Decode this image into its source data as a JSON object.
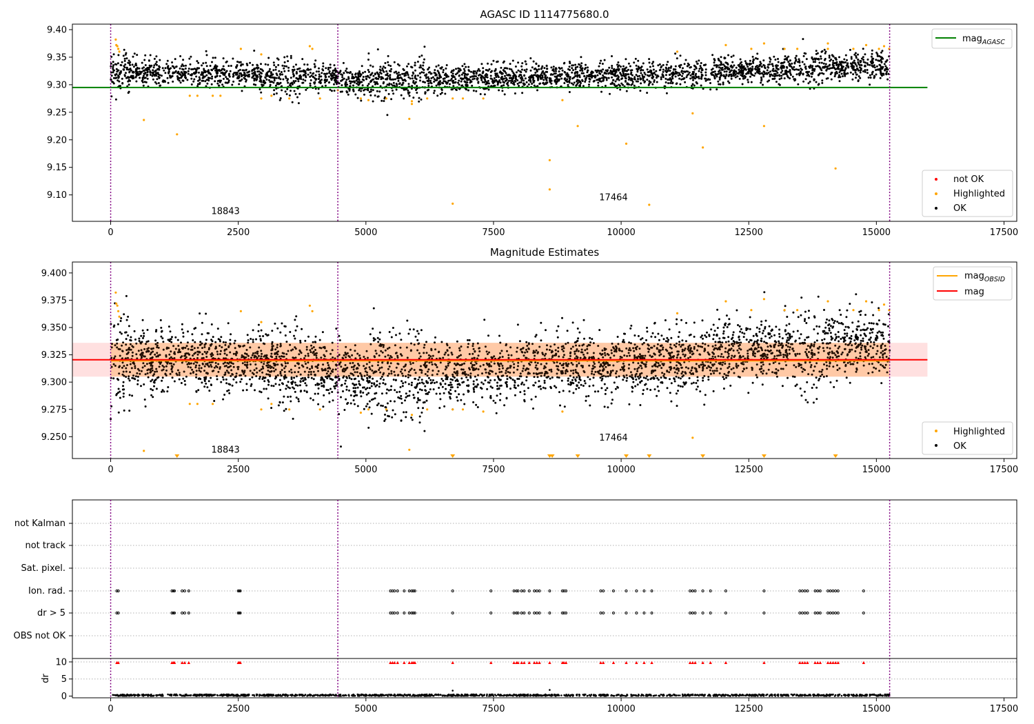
{
  "chart_data": [
    {
      "type": "scatter",
      "title": "AGASC ID 1114775680.0",
      "x_range": [
        -750,
        17750
      ],
      "y_range": [
        9.052,
        9.41
      ],
      "x_ticks": [
        0,
        2500,
        5000,
        7500,
        10000,
        12500,
        15000,
        17500
      ],
      "x_tick_labels": [
        "0",
        "2500",
        "5000",
        "7500",
        "10000",
        "12500",
        "15000",
        "17500"
      ],
      "y_ticks": [
        9.1,
        9.15,
        9.2,
        9.25,
        9.3,
        9.35,
        9.4
      ],
      "y_tick_labels": [
        "9.10",
        "9.15",
        "9.20",
        "9.25",
        "9.30",
        "9.35",
        "9.40"
      ],
      "obs_boundaries": [
        0,
        4450,
        15260
      ],
      "obs_labels": [
        {
          "x": 2250,
          "y": 9.07,
          "text": "18843"
        },
        {
          "x": 9850,
          "y": 9.095,
          "text": "17464"
        }
      ],
      "mean_line": {
        "y": 9.295,
        "x_start": -750,
        "x_end": 16000,
        "color": "#008000"
      },
      "ok_band": {
        "x_start": 0,
        "x_end": 15260,
        "profile_x": [
          0,
          1500,
          3000,
          4450,
          5000,
          6000,
          7500,
          9000,
          10500,
          12000,
          13500,
          15260
        ],
        "profile_center": [
          9.32,
          9.322,
          9.318,
          9.31,
          9.306,
          9.308,
          9.312,
          9.316,
          9.318,
          9.325,
          9.33,
          9.335
        ],
        "half_width": 0.022,
        "spread_boost_x": [
          120,
          3500,
          5300,
          5900,
          13700
        ],
        "point_count": 3200,
        "color": "#000000"
      },
      "highlighted_points": [
        [
          100,
          9.382
        ],
        [
          110,
          9.372
        ],
        [
          130,
          9.37
        ],
        [
          150,
          9.365
        ],
        [
          170,
          9.36
        ],
        [
          650,
          9.236
        ],
        [
          1300,
          9.21
        ],
        [
          1550,
          9.28
        ],
        [
          1700,
          9.28
        ],
        [
          2000,
          9.28
        ],
        [
          2150,
          9.28
        ],
        [
          2550,
          9.365
        ],
        [
          2950,
          9.355
        ],
        [
          2950,
          9.275
        ],
        [
          3150,
          9.28
        ],
        [
          3500,
          9.275
        ],
        [
          3900,
          9.37
        ],
        [
          3950,
          9.365
        ],
        [
          4100,
          9.275
        ],
        [
          4450,
          9.29
        ],
        [
          4900,
          9.275
        ],
        [
          5050,
          9.272
        ],
        [
          5400,
          9.275
        ],
        [
          5850,
          9.238
        ],
        [
          5900,
          9.27
        ],
        [
          5900,
          9.265
        ],
        [
          6200,
          9.275
        ],
        [
          6700,
          9.275
        ],
        [
          6700,
          9.084
        ],
        [
          6900,
          9.275
        ],
        [
          7300,
          9.275
        ],
        [
          8600,
          9.163
        ],
        [
          8600,
          9.11
        ],
        [
          8850,
          9.272
        ],
        [
          9150,
          9.225
        ],
        [
          10100,
          9.193
        ],
        [
          10550,
          9.082
        ],
        [
          11100,
          9.36
        ],
        [
          11400,
          9.248
        ],
        [
          11600,
          9.186
        ],
        [
          12050,
          9.372
        ],
        [
          12550,
          9.365
        ],
        [
          12800,
          9.375
        ],
        [
          12800,
          9.225
        ],
        [
          13200,
          9.365
        ],
        [
          13450,
          9.365
        ],
        [
          14050,
          9.375
        ],
        [
          14050,
          9.365
        ],
        [
          14200,
          9.148
        ],
        [
          14550,
          9.365
        ],
        [
          14800,
          9.372
        ],
        [
          15050,
          9.365
        ],
        [
          15150,
          9.37
        ],
        [
          15250,
          9.365
        ]
      ],
      "legends": [
        {
          "position": "upper-right",
          "entries": [
            {
              "kind": "line",
              "label": "mag",
              "subscript": "AGASC",
              "color": "#008000"
            }
          ]
        },
        {
          "position": "lower-right",
          "entries": [
            {
              "kind": "dot",
              "label": "not OK",
              "color": "#ff0000"
            },
            {
              "kind": "dot",
              "label": "Highlighted",
              "color": "#ffa500"
            },
            {
              "kind": "dot",
              "label": "OK",
              "color": "#000000"
            }
          ]
        }
      ]
    },
    {
      "type": "scatter",
      "title": "Magnitude Estimates",
      "x_range": [
        -750,
        17750
      ],
      "y_range": [
        9.23,
        9.41
      ],
      "x_ticks": [
        0,
        2500,
        5000,
        7500,
        10000,
        12500,
        15000,
        17500
      ],
      "x_tick_labels": [
        "0",
        "2500",
        "5000",
        "7500",
        "10000",
        "12500",
        "15000",
        "17500"
      ],
      "y_ticks": [
        9.25,
        9.275,
        9.3,
        9.325,
        9.35,
        9.375,
        9.4
      ],
      "y_tick_labels": [
        "9.250",
        "9.275",
        "9.300",
        "9.325",
        "9.350",
        "9.375",
        "9.400"
      ],
      "obs_boundaries": [
        0,
        4450,
        15260
      ],
      "obs_labels": [
        {
          "x": 2250,
          "y": 9.238,
          "text": "18843"
        },
        {
          "x": 9850,
          "y": 9.249,
          "text": "17464"
        }
      ],
      "mag_line": {
        "y": 9.3205,
        "x_start": -750,
        "x_end": 16000,
        "color": "#ff0000"
      },
      "mag_obsid_line": {
        "y": 9.3195,
        "x_start": 0,
        "x_end": 15260,
        "color": "#ffa500"
      },
      "mag_band": {
        "y_low": 9.305,
        "y_high": 9.336,
        "x_start": -750,
        "x_end": 16000,
        "color": "#ff0000"
      },
      "mag_obsid_band": {
        "y_low": 9.305,
        "y_high": 9.336,
        "x_start": 0,
        "x_end": 15260,
        "color": "#ffa500"
      },
      "ok_band": {
        "x_start": 0,
        "x_end": 15260,
        "profile_x": [
          0,
          1500,
          3000,
          4450,
          5000,
          6000,
          7500,
          9000,
          10500,
          12000,
          13500,
          15260
        ],
        "profile_center": [
          9.32,
          9.322,
          9.318,
          9.31,
          9.306,
          9.308,
          9.312,
          9.316,
          9.318,
          9.325,
          9.33,
          9.335
        ],
        "half_width": 0.026,
        "spread_boost_x": [
          120,
          3500,
          5300,
          5900,
          13700
        ],
        "point_count": 3600,
        "color": "#000000"
      },
      "highlighted_points": [
        [
          100,
          9.382
        ],
        [
          110,
          9.372
        ],
        [
          130,
          9.37
        ],
        [
          150,
          9.365
        ],
        [
          170,
          9.36
        ],
        [
          650,
          9.237
        ],
        [
          1550,
          9.28
        ],
        [
          1700,
          9.28
        ],
        [
          2000,
          9.28
        ],
        [
          2550,
          9.365
        ],
        [
          2950,
          9.355
        ],
        [
          2950,
          9.275
        ],
        [
          3150,
          9.28
        ],
        [
          3500,
          9.275
        ],
        [
          3900,
          9.37
        ],
        [
          3950,
          9.365
        ],
        [
          4100,
          9.275
        ],
        [
          4900,
          9.272
        ],
        [
          5050,
          9.275
        ],
        [
          5400,
          9.275
        ],
        [
          5850,
          9.238
        ],
        [
          5900,
          9.27
        ],
        [
          6200,
          9.275
        ],
        [
          6700,
          9.275
        ],
        [
          6900,
          9.275
        ],
        [
          7300,
          9.273
        ],
        [
          8850,
          9.273
        ],
        [
          11100,
          9.363
        ],
        [
          11400,
          9.249
        ],
        [
          12050,
          9.374
        ],
        [
          12550,
          9.366
        ],
        [
          12800,
          9.376
        ],
        [
          13200,
          9.366
        ],
        [
          13450,
          9.366
        ],
        [
          14050,
          9.374
        ],
        [
          14550,
          9.366
        ],
        [
          14800,
          9.374
        ],
        [
          15050,
          9.366
        ],
        [
          15150,
          9.371
        ],
        [
          15250,
          9.366
        ]
      ],
      "clipped_markers_x": [
        1300,
        6700,
        8600,
        8650,
        9150,
        10100,
        10550,
        11600,
        12800,
        14200
      ],
      "legends": [
        {
          "position": "upper-right",
          "entries": [
            {
              "kind": "line",
              "label": "mag",
              "subscript": "OBSID",
              "color": "#ffa500"
            },
            {
              "kind": "line",
              "label": "mag",
              "subscript": "",
              "color": "#ff0000"
            }
          ]
        },
        {
          "position": "lower-right",
          "entries": [
            {
              "kind": "dot",
              "label": "Highlighted",
              "color": "#ffa500"
            },
            {
              "kind": "dot",
              "label": "OK",
              "color": "#000000"
            }
          ]
        }
      ]
    },
    {
      "type": "scatter",
      "title": "",
      "x_range": [
        -750,
        17750
      ],
      "category_rows": [
        "not Kalman",
        "not track",
        "Sat. pixel.",
        "Ion. rad.",
        "dr > 5",
        "OBS not OK"
      ],
      "obs_boundaries": [
        0,
        4450,
        15260
      ],
      "flagged_x": [
        120,
        150,
        1200,
        1230,
        1250,
        1400,
        1450,
        1530,
        2500,
        2520,
        2540,
        5480,
        5520,
        5560,
        5620,
        5750,
        5850,
        5900,
        5930,
        5960,
        6700,
        7450,
        7900,
        7950,
        7980,
        8050,
        8100,
        8200,
        8300,
        8350,
        8400,
        8600,
        8850,
        8880,
        8920,
        9600,
        9650,
        9850,
        10100,
        10300,
        10450,
        10600,
        11350,
        11400,
        11450,
        11600,
        11750,
        12050,
        12800,
        13500,
        13550,
        13600,
        13650,
        13800,
        13850,
        13900,
        14050,
        14100,
        14150,
        14200,
        14250,
        14750
      ],
      "dr_subplot": {
        "ylabel": "dr",
        "y_range": [
          -0.5,
          11
        ],
        "y_ticks": [
          0,
          5,
          10
        ],
        "y_tick_labels": [
          "0",
          "5",
          "10"
        ],
        "baseline_max": 0.5,
        "outliers": [
          [
            6700,
            1.6
          ],
          [
            8600,
            1.8
          ]
        ],
        "clipped_y": 9.8
      },
      "x_ticks": [
        0,
        2500,
        5000,
        7500,
        10000,
        12500,
        15000,
        17500
      ],
      "x_tick_labels": [
        "0",
        "2500",
        "5000",
        "7500",
        "10000",
        "12500",
        "15000",
        "17500"
      ]
    }
  ],
  "colors": {
    "ok": "#000000",
    "highlighted": "#ffa500",
    "not_ok": "#ff0000",
    "agasc_mag": "#008000",
    "obs_boundary": "#800080",
    "grid": "#b0b0b0"
  }
}
